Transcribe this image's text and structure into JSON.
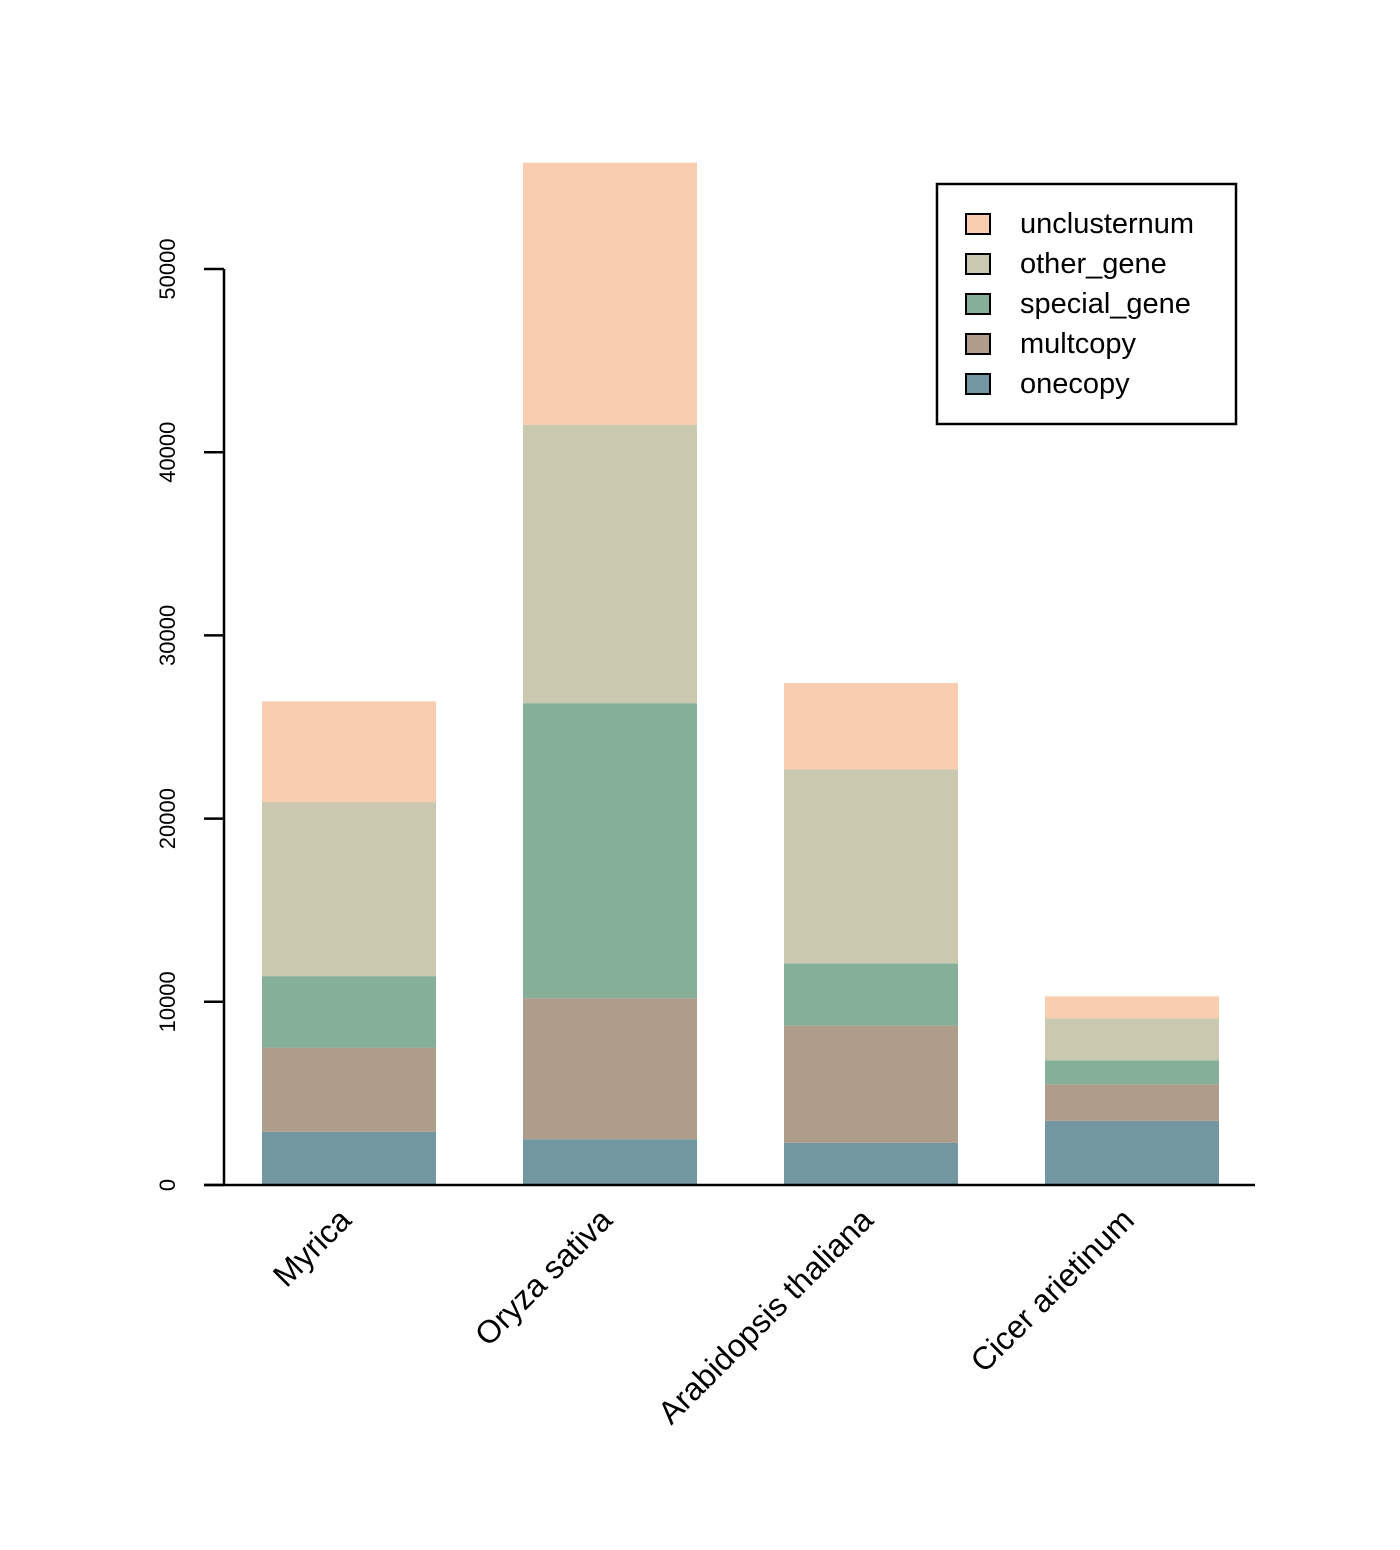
{
  "chart_data": {
    "type": "bar",
    "stacked": true,
    "title": "",
    "xlabel": "",
    "ylabel": "",
    "ylim": [
      0,
      56000
    ],
    "yticks": [
      0,
      10000,
      20000,
      30000,
      40000,
      50000
    ],
    "categories": [
      "Myrica",
      "Oryza sativa",
      "Arabidopsis thaliana",
      "Cicer arietinum"
    ],
    "series": [
      {
        "name": "onecopy",
        "color": "#7297a0",
        "values": [
          2900,
          2500,
          2300,
          3500
        ]
      },
      {
        "name": "multcopy",
        "color": "#ae9d8b",
        "values": [
          4600,
          7700,
          6400,
          2000
        ]
      },
      {
        "name": "special_gene",
        "color": "#86af9a",
        "values": [
          3900,
          16100,
          3400,
          1300
        ]
      },
      {
        "name": "other_gene",
        "color": "#cac8af",
        "values": [
          9500,
          15200,
          10600,
          2300
        ]
      },
      {
        "name": "unclusternum",
        "color": "#f9cdaf",
        "values": [
          5500,
          14300,
          4700,
          1200
        ]
      }
    ],
    "legend_position": "top-right",
    "grid": false
  }
}
